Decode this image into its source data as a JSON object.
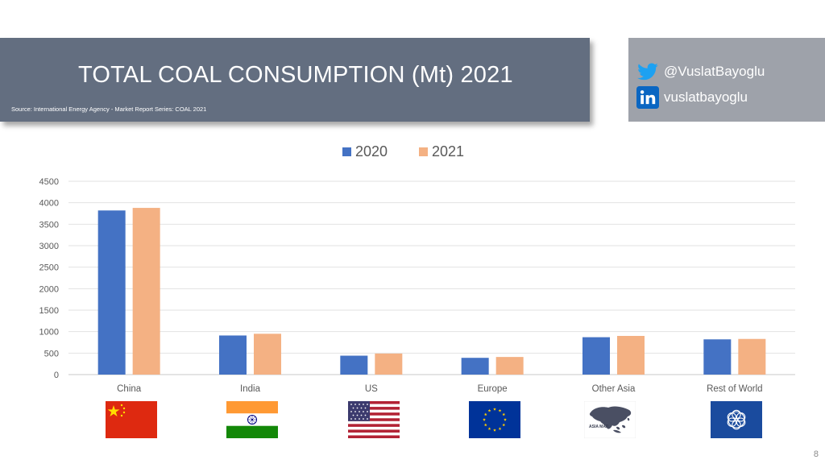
{
  "header": {
    "title": "TOTAL COAL CONSUMPTION (Mt) 2021",
    "source": "Source: International Energy Agency - Market Report Series: COAL 2021"
  },
  "social": {
    "twitter_handle": "@VuslatBayoglu",
    "linkedin_handle": "vuslatbayoglu",
    "twitter_color": "#1da1f2",
    "linkedin_color": "#0a66c2"
  },
  "chart_data": {
    "type": "bar",
    "title": "",
    "categories": [
      "China",
      "India",
      "US",
      "Europe",
      "Other Asia",
      "Rest of World"
    ],
    "series": [
      {
        "name": "2020",
        "color": "#4472c4",
        "values": [
          3820,
          910,
          440,
          390,
          870,
          820
        ]
      },
      {
        "name": "2021",
        "color": "#f4b183",
        "values": [
          3880,
          950,
          490,
          410,
          900,
          830
        ]
      }
    ],
    "yticks": [
      0,
      500,
      1000,
      1500,
      2000,
      2500,
      3000,
      3500,
      4000,
      4500
    ],
    "ylim": [
      0,
      4500
    ],
    "xlabel": "",
    "ylabel": "",
    "grid": true,
    "legend": "top-center"
  },
  "flags": [
    {
      "name": "China flag"
    },
    {
      "name": "India flag"
    },
    {
      "name": "US flag"
    },
    {
      "name": "Europe flag"
    },
    {
      "name": "Other Asia map",
      "label": "ASIA MAP"
    },
    {
      "name": "Rest of World flag"
    }
  ],
  "page": {
    "number": "8"
  }
}
